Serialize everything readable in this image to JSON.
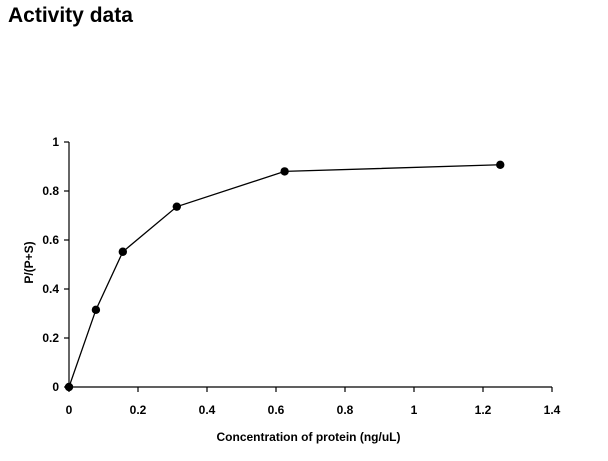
{
  "title": "Activity data",
  "chart_data": {
    "type": "line",
    "xlabel": "Concentration of protein (ng/uL)",
    "ylabel": "P/(P+S)",
    "xlim": [
      0,
      1.4
    ],
    "ylim": [
      0,
      1
    ],
    "xticks": [
      0,
      0.2,
      0.4,
      0.6,
      0.8,
      1,
      1.2,
      1.4
    ],
    "yticks": [
      0,
      0.2,
      0.4,
      0.6,
      0.8,
      1
    ],
    "xtick_labels": [
      "0",
      "0.2",
      "0.4",
      "0.6",
      "0.8",
      "1",
      "1.2",
      "1.4"
    ],
    "ytick_labels": [
      "0",
      "0.2",
      "0.4",
      "0.6",
      "0.8",
      "1"
    ],
    "grid": false,
    "legend": "none",
    "series": [
      {
        "x": [
          0,
          0.078,
          0.156,
          0.3125,
          0.625,
          1.25
        ],
        "y": [
          0,
          0.315,
          0.552,
          0.736,
          0.88,
          0.907
        ],
        "color": "#000000",
        "marker": "circle"
      }
    ]
  }
}
